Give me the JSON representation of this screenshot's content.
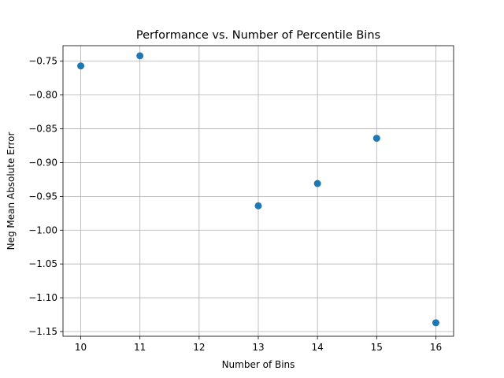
{
  "chart_data": {
    "type": "scatter",
    "title": "Performance vs. Number of Percentile Bins",
    "xlabel": "Number of Bins",
    "ylabel": "Neg Mean Absolute Error",
    "xlim": [
      9.7,
      16.3
    ],
    "ylim": [
      -1.157,
      -0.727
    ],
    "x_ticks": [
      10,
      11,
      12,
      13,
      14,
      15,
      16
    ],
    "x_tick_labels": [
      "10",
      "11",
      "12",
      "13",
      "14",
      "15",
      "16"
    ],
    "y_ticks": [
      -0.75,
      -0.8,
      -0.85,
      -0.9,
      -0.95,
      -1.0,
      -1.05,
      -1.1,
      -1.15
    ],
    "y_tick_labels": [
      "−0.75",
      "−0.80",
      "−0.85",
      "−0.90",
      "−0.95",
      "−1.00",
      "−1.05",
      "−1.10",
      "−1.15"
    ],
    "grid": true,
    "marker_color": "#1f77b4",
    "series": [
      {
        "x": [
          10,
          11,
          13,
          14,
          15,
          16
        ],
        "y": [
          -0.757,
          -0.742,
          -0.964,
          -0.931,
          -0.864,
          -1.137
        ]
      }
    ]
  }
}
